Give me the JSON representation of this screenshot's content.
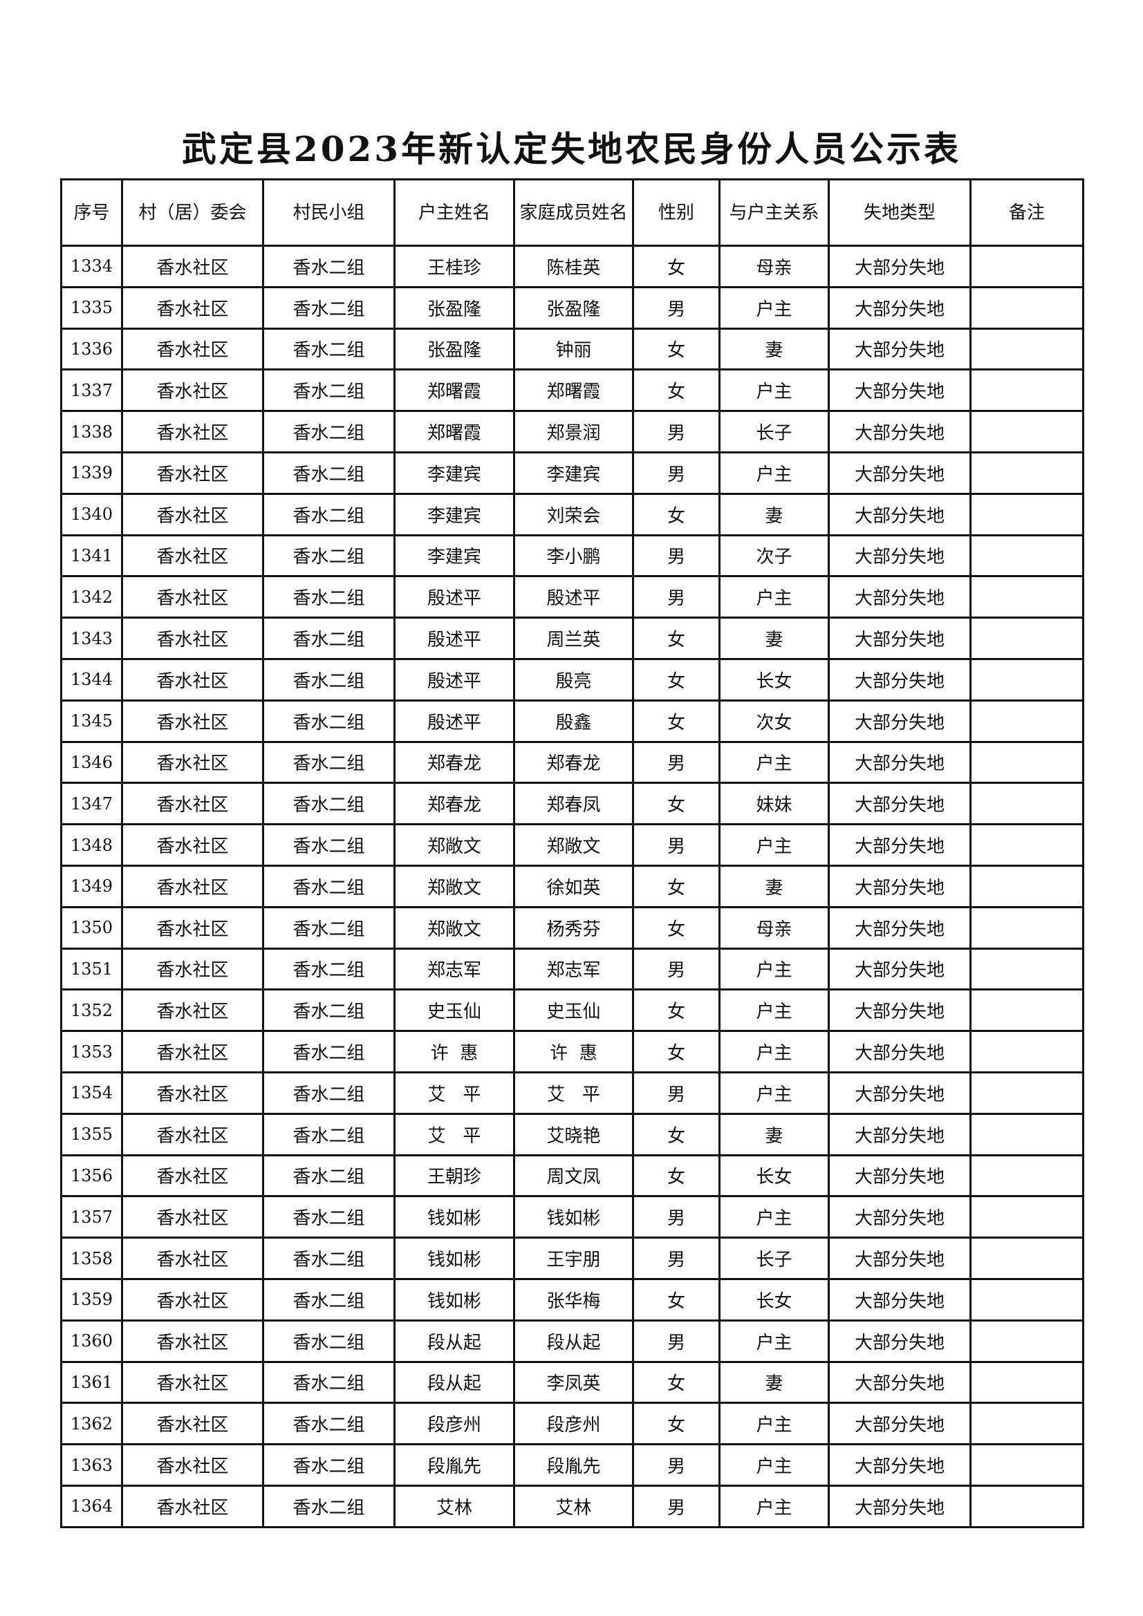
{
  "title": "武定县2023年新认定失地农民身份人员公示表",
  "headers": [
    "序号",
    "村（居）委会",
    "村民小组",
    "户主姓名",
    "家庭成员姓名",
    "性别",
    "与户主关系",
    "失地类型",
    "备注"
  ],
  "rows": [
    [
      "1334",
      "香水社区",
      "香水二组",
      "王桂珍",
      "陈桂英",
      "女",
      "母亲",
      "大部分失地",
      ""
    ],
    [
      "1335",
      "香水社区",
      "香水二组",
      "张盈隆",
      "张盈隆",
      "男",
      "户主",
      "大部分失地",
      ""
    ],
    [
      "1336",
      "香水社区",
      "香水二组",
      "张盈隆",
      "钟丽",
      "女",
      "妻",
      "大部分失地",
      ""
    ],
    [
      "1337",
      "香水社区",
      "香水二组",
      "郑曙霞",
      "郑曙霞",
      "女",
      "户主",
      "大部分失地",
      ""
    ],
    [
      "1338",
      "香水社区",
      "香水二组",
      "郑曙霞",
      "郑景润",
      "男",
      "长子",
      "大部分失地",
      ""
    ],
    [
      "1339",
      "香水社区",
      "香水二组",
      "李建宾",
      "李建宾",
      "男",
      "户主",
      "大部分失地",
      ""
    ],
    [
      "1340",
      "香水社区",
      "香水二组",
      "李建宾",
      "刘荣会",
      "女",
      "妻",
      "大部分失地",
      ""
    ],
    [
      "1341",
      "香水社区",
      "香水二组",
      "李建宾",
      "李小鹏",
      "男",
      "次子",
      "大部分失地",
      ""
    ],
    [
      "1342",
      "香水社区",
      "香水二组",
      "殷述平",
      "殷述平",
      "男",
      "户主",
      "大部分失地",
      ""
    ],
    [
      "1343",
      "香水社区",
      "香水二组",
      "殷述平",
      "周兰英",
      "女",
      "妻",
      "大部分失地",
      ""
    ],
    [
      "1344",
      "香水社区",
      "香水二组",
      "殷述平",
      "殷亮",
      "女",
      "长女",
      "大部分失地",
      ""
    ],
    [
      "1345",
      "香水社区",
      "香水二组",
      "殷述平",
      "殷鑫",
      "女",
      "次女",
      "大部分失地",
      ""
    ],
    [
      "1346",
      "香水社区",
      "香水二组",
      "郑春龙",
      "郑春龙",
      "男",
      "户主",
      "大部分失地",
      ""
    ],
    [
      "1347",
      "香水社区",
      "香水二组",
      "郑春龙",
      "郑春凤",
      "女",
      "妹妹",
      "大部分失地",
      ""
    ],
    [
      "1348",
      "香水社区",
      "香水二组",
      "郑敞文",
      "郑敞文",
      "男",
      "户主",
      "大部分失地",
      ""
    ],
    [
      "1349",
      "香水社区",
      "香水二组",
      "郑敞文",
      "徐如英",
      "女",
      "妻",
      "大部分失地",
      ""
    ],
    [
      "1350",
      "香水社区",
      "香水二组",
      "郑敞文",
      "杨秀芬",
      "女",
      "母亲",
      "大部分失地",
      ""
    ],
    [
      "1351",
      "香水社区",
      "香水二组",
      "郑志军",
      "郑志军",
      "男",
      "户主",
      "大部分失地",
      ""
    ],
    [
      "1352",
      "香水社区",
      "香水二组",
      "史玉仙",
      "史玉仙",
      "女",
      "户主",
      "大部分失地",
      ""
    ],
    [
      "1353",
      "香水社区",
      "香水二组",
      "许  惠",
      "许  惠",
      "女",
      "户主",
      "大部分失地",
      ""
    ],
    [
      "1354",
      "香水社区",
      "香水二组",
      "艾   平",
      "艾   平",
      "男",
      "户主",
      "大部分失地",
      ""
    ],
    [
      "1355",
      "香水社区",
      "香水二组",
      "艾   平",
      "艾晓艳",
      "女",
      "妻",
      "大部分失地",
      ""
    ],
    [
      "1356",
      "香水社区",
      "香水二组",
      "王朝珍",
      "周文凤",
      "女",
      "长女",
      "大部分失地",
      ""
    ],
    [
      "1357",
      "香水社区",
      "香水二组",
      "钱如彬",
      "钱如彬",
      "男",
      "户主",
      "大部分失地",
      ""
    ],
    [
      "1358",
      "香水社区",
      "香水二组",
      "钱如彬",
      "王宇朋",
      "男",
      "长子",
      "大部分失地",
      ""
    ],
    [
      "1359",
      "香水社区",
      "香水二组",
      "钱如彬",
      "张华梅",
      "女",
      "长女",
      "大部分失地",
      ""
    ],
    [
      "1360",
      "香水社区",
      "香水二组",
      "段从起",
      "段从起",
      "男",
      "户主",
      "大部分失地",
      ""
    ],
    [
      "1361",
      "香水社区",
      "香水二组",
      "段从起",
      "李凤英",
      "女",
      "妻",
      "大部分失地",
      ""
    ],
    [
      "1362",
      "香水社区",
      "香水二组",
      "段彦州",
      "段彦州",
      "女",
      "户主",
      "大部分失地",
      ""
    ],
    [
      "1363",
      "香水社区",
      "香水二组",
      "段胤先",
      "段胤先",
      "男",
      "户主",
      "大部分失地",
      ""
    ],
    [
      "1364",
      "香水社区",
      "香水二组",
      "艾林",
      "艾林",
      "男",
      "户主",
      "大部分失地",
      ""
    ]
  ]
}
